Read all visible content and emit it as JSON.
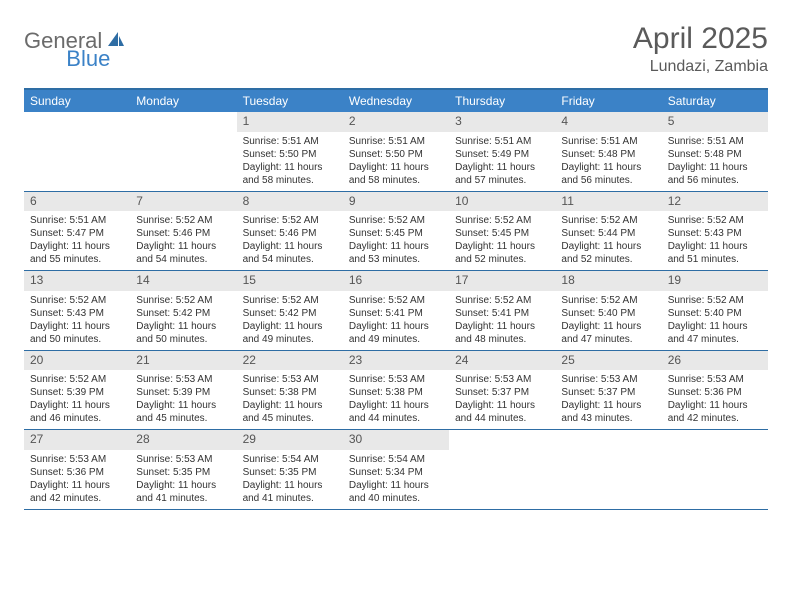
{
  "logo": {
    "part1": "General",
    "part2": "Blue"
  },
  "title": "April 2025",
  "location": "Lundazi, Zambia",
  "colors": {
    "header_bg": "#3b82c7",
    "border": "#2e6da4",
    "daynum_bg": "#e8e8e8",
    "text": "#333333",
    "title_text": "#5a5a5a"
  },
  "day_names": [
    "Sunday",
    "Monday",
    "Tuesday",
    "Wednesday",
    "Thursday",
    "Friday",
    "Saturday"
  ],
  "weeks": [
    [
      null,
      null,
      {
        "n": "1",
        "sr": "Sunrise: 5:51 AM",
        "ss": "Sunset: 5:50 PM",
        "dl": "Daylight: 11 hours and 58 minutes."
      },
      {
        "n": "2",
        "sr": "Sunrise: 5:51 AM",
        "ss": "Sunset: 5:50 PM",
        "dl": "Daylight: 11 hours and 58 minutes."
      },
      {
        "n": "3",
        "sr": "Sunrise: 5:51 AM",
        "ss": "Sunset: 5:49 PM",
        "dl": "Daylight: 11 hours and 57 minutes."
      },
      {
        "n": "4",
        "sr": "Sunrise: 5:51 AM",
        "ss": "Sunset: 5:48 PM",
        "dl": "Daylight: 11 hours and 56 minutes."
      },
      {
        "n": "5",
        "sr": "Sunrise: 5:51 AM",
        "ss": "Sunset: 5:48 PM",
        "dl": "Daylight: 11 hours and 56 minutes."
      }
    ],
    [
      {
        "n": "6",
        "sr": "Sunrise: 5:51 AM",
        "ss": "Sunset: 5:47 PM",
        "dl": "Daylight: 11 hours and 55 minutes."
      },
      {
        "n": "7",
        "sr": "Sunrise: 5:52 AM",
        "ss": "Sunset: 5:46 PM",
        "dl": "Daylight: 11 hours and 54 minutes."
      },
      {
        "n": "8",
        "sr": "Sunrise: 5:52 AM",
        "ss": "Sunset: 5:46 PM",
        "dl": "Daylight: 11 hours and 54 minutes."
      },
      {
        "n": "9",
        "sr": "Sunrise: 5:52 AM",
        "ss": "Sunset: 5:45 PM",
        "dl": "Daylight: 11 hours and 53 minutes."
      },
      {
        "n": "10",
        "sr": "Sunrise: 5:52 AM",
        "ss": "Sunset: 5:45 PM",
        "dl": "Daylight: 11 hours and 52 minutes."
      },
      {
        "n": "11",
        "sr": "Sunrise: 5:52 AM",
        "ss": "Sunset: 5:44 PM",
        "dl": "Daylight: 11 hours and 52 minutes."
      },
      {
        "n": "12",
        "sr": "Sunrise: 5:52 AM",
        "ss": "Sunset: 5:43 PM",
        "dl": "Daylight: 11 hours and 51 minutes."
      }
    ],
    [
      {
        "n": "13",
        "sr": "Sunrise: 5:52 AM",
        "ss": "Sunset: 5:43 PM",
        "dl": "Daylight: 11 hours and 50 minutes."
      },
      {
        "n": "14",
        "sr": "Sunrise: 5:52 AM",
        "ss": "Sunset: 5:42 PM",
        "dl": "Daylight: 11 hours and 50 minutes."
      },
      {
        "n": "15",
        "sr": "Sunrise: 5:52 AM",
        "ss": "Sunset: 5:42 PM",
        "dl": "Daylight: 11 hours and 49 minutes."
      },
      {
        "n": "16",
        "sr": "Sunrise: 5:52 AM",
        "ss": "Sunset: 5:41 PM",
        "dl": "Daylight: 11 hours and 49 minutes."
      },
      {
        "n": "17",
        "sr": "Sunrise: 5:52 AM",
        "ss": "Sunset: 5:41 PM",
        "dl": "Daylight: 11 hours and 48 minutes."
      },
      {
        "n": "18",
        "sr": "Sunrise: 5:52 AM",
        "ss": "Sunset: 5:40 PM",
        "dl": "Daylight: 11 hours and 47 minutes."
      },
      {
        "n": "19",
        "sr": "Sunrise: 5:52 AM",
        "ss": "Sunset: 5:40 PM",
        "dl": "Daylight: 11 hours and 47 minutes."
      }
    ],
    [
      {
        "n": "20",
        "sr": "Sunrise: 5:52 AM",
        "ss": "Sunset: 5:39 PM",
        "dl": "Daylight: 11 hours and 46 minutes."
      },
      {
        "n": "21",
        "sr": "Sunrise: 5:53 AM",
        "ss": "Sunset: 5:39 PM",
        "dl": "Daylight: 11 hours and 45 minutes."
      },
      {
        "n": "22",
        "sr": "Sunrise: 5:53 AM",
        "ss": "Sunset: 5:38 PM",
        "dl": "Daylight: 11 hours and 45 minutes."
      },
      {
        "n": "23",
        "sr": "Sunrise: 5:53 AM",
        "ss": "Sunset: 5:38 PM",
        "dl": "Daylight: 11 hours and 44 minutes."
      },
      {
        "n": "24",
        "sr": "Sunrise: 5:53 AM",
        "ss": "Sunset: 5:37 PM",
        "dl": "Daylight: 11 hours and 44 minutes."
      },
      {
        "n": "25",
        "sr": "Sunrise: 5:53 AM",
        "ss": "Sunset: 5:37 PM",
        "dl": "Daylight: 11 hours and 43 minutes."
      },
      {
        "n": "26",
        "sr": "Sunrise: 5:53 AM",
        "ss": "Sunset: 5:36 PM",
        "dl": "Daylight: 11 hours and 42 minutes."
      }
    ],
    [
      {
        "n": "27",
        "sr": "Sunrise: 5:53 AM",
        "ss": "Sunset: 5:36 PM",
        "dl": "Daylight: 11 hours and 42 minutes."
      },
      {
        "n": "28",
        "sr": "Sunrise: 5:53 AM",
        "ss": "Sunset: 5:35 PM",
        "dl": "Daylight: 11 hours and 41 minutes."
      },
      {
        "n": "29",
        "sr": "Sunrise: 5:54 AM",
        "ss": "Sunset: 5:35 PM",
        "dl": "Daylight: 11 hours and 41 minutes."
      },
      {
        "n": "30",
        "sr": "Sunrise: 5:54 AM",
        "ss": "Sunset: 5:34 PM",
        "dl": "Daylight: 11 hours and 40 minutes."
      },
      null,
      null,
      null
    ]
  ]
}
